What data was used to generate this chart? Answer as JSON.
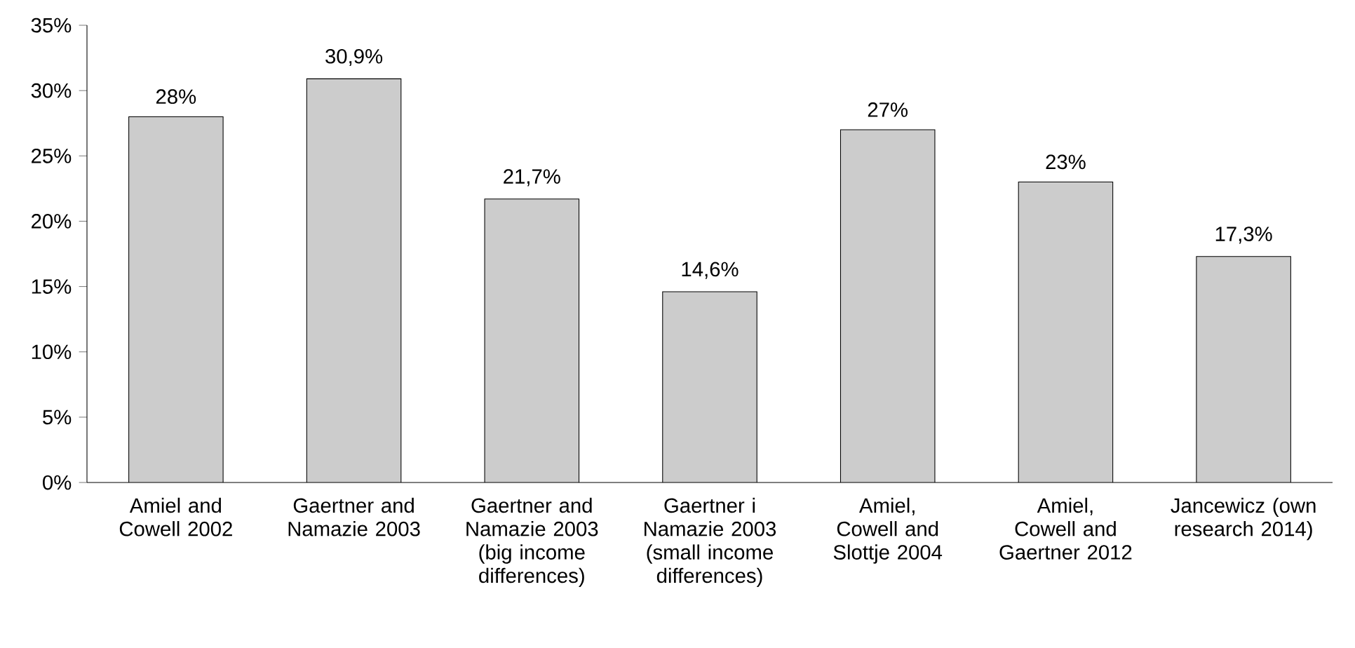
{
  "chart_data": {
    "type": "bar",
    "categories": [
      "Amiel and Cowell 2002",
      "Gaertner and Namazie 2003",
      "Gaertner and Namazie 2003 (big income differences)",
      "Gaertner i Namazie 2003 (small income differences)",
      "Amiel, Cowell and Slottje 2004",
      "Amiel, Cowell and Gaertner 2012",
      "Jancewicz (own research 2014)"
    ],
    "values": [
      28,
      30.9,
      21.7,
      14.6,
      27,
      23,
      17.3
    ],
    "value_labels": [
      "28%",
      "30,9%",
      "21,7%",
      "14,6%",
      "27%",
      "23%",
      "17,3%"
    ],
    "color": "#cccccc",
    "ylim": [
      0,
      35
    ],
    "yticks": [
      {
        "value": 0,
        "label": "0%"
      },
      {
        "value": 5,
        "label": "5%"
      },
      {
        "value": 10,
        "label": "10%"
      },
      {
        "value": 15,
        "label": "15%"
      },
      {
        "value": 20,
        "label": "20%"
      },
      {
        "value": 25,
        "label": "25%"
      },
      {
        "value": 30,
        "label": "30%"
      },
      {
        "value": 35,
        "label": "35%"
      }
    ],
    "grid": false
  }
}
